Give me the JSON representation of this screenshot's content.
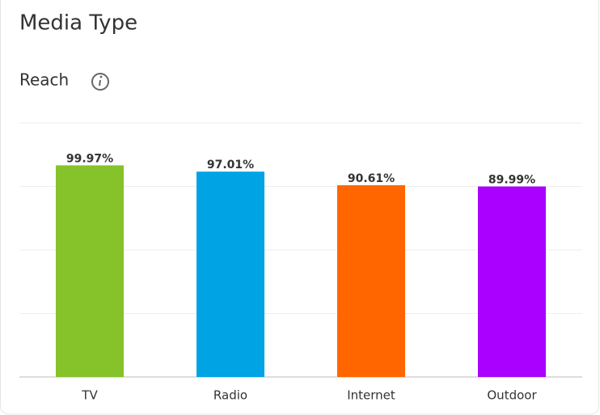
{
  "chart_data": {
    "type": "bar",
    "title": "Media Type",
    "subtitle": "Reach",
    "categories": [
      "TV",
      "Radio",
      "Internet",
      "Outdoor"
    ],
    "values": [
      99.97,
      97.01,
      90.61,
      89.99
    ],
    "value_labels": [
      "99.97%",
      "97.01%",
      "90.61%",
      "89.99%"
    ],
    "colors": [
      "#86c22a",
      "#00a3e4",
      "#ff6600",
      "#aa00ff"
    ],
    "ylim": [
      0,
      120
    ],
    "yticks": [
      0,
      30,
      60,
      90,
      120
    ],
    "grid": true
  }
}
